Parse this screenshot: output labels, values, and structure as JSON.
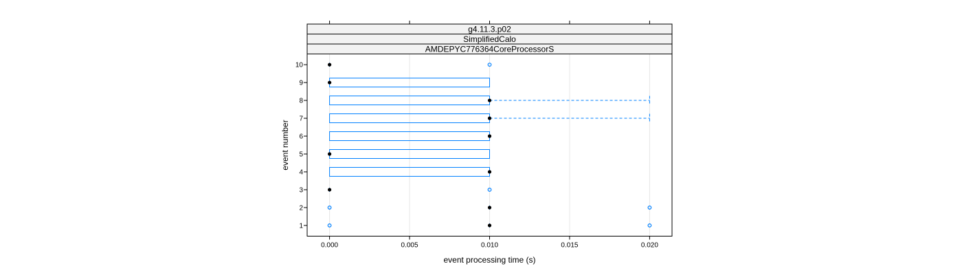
{
  "chart_data": {
    "type": "boxplot",
    "strips": [
      "g4.11.3.p02",
      "SimplifiedCalo",
      "AMDEPYC776364CoreProcessorS"
    ],
    "xlabel": "event processing time (s)",
    "ylabel": "event number",
    "xlim": [
      -0.0014,
      0.0214
    ],
    "ylim": [
      0.4,
      10.6
    ],
    "x_ticks": [
      0.0,
      0.005,
      0.01,
      0.015,
      0.02
    ],
    "x_tick_labels": [
      "0.000",
      "0.005",
      "0.010",
      "0.015",
      "0.020"
    ],
    "y_ticks": [
      1,
      2,
      3,
      4,
      5,
      6,
      7,
      8,
      9,
      10
    ],
    "y_tick_labels": [
      "1",
      "2",
      "3",
      "4",
      "5",
      "6",
      "7",
      "8",
      "9",
      "10"
    ],
    "grid": "vertical",
    "colors": {
      "box": "#0080ff",
      "median": "#000000",
      "strip_bg": "#f2f2f2",
      "grid": "#e6e6e6"
    },
    "boxes": [
      {
        "event": 1,
        "q1": 0.01,
        "median": 0.01,
        "q3": 0.01,
        "whisker_low": 0.01,
        "whisker_high": 0.01,
        "outliers": [
          0.0,
          0.02
        ]
      },
      {
        "event": 2,
        "q1": 0.01,
        "median": 0.01,
        "q3": 0.01,
        "whisker_low": 0.01,
        "whisker_high": 0.01,
        "outliers": [
          0.0,
          0.02
        ]
      },
      {
        "event": 3,
        "q1": 0.0,
        "median": 0.0,
        "q3": 0.0,
        "whisker_low": 0.0,
        "whisker_high": 0.0,
        "outliers": [
          0.01
        ]
      },
      {
        "event": 4,
        "q1": 0.0,
        "median": 0.01,
        "q3": 0.01,
        "whisker_low": 0.0,
        "whisker_high": 0.01,
        "outliers": []
      },
      {
        "event": 5,
        "q1": 0.0,
        "median": 0.0,
        "q3": 0.01,
        "whisker_low": 0.0,
        "whisker_high": 0.01,
        "outliers": []
      },
      {
        "event": 6,
        "q1": 0.0,
        "median": 0.01,
        "q3": 0.01,
        "whisker_low": 0.0,
        "whisker_high": 0.01,
        "outliers": []
      },
      {
        "event": 7,
        "q1": 0.0,
        "median": 0.01,
        "q3": 0.01,
        "whisker_low": 0.0,
        "whisker_high": 0.02,
        "outliers": []
      },
      {
        "event": 8,
        "q1": 0.0,
        "median": 0.01,
        "q3": 0.01,
        "whisker_low": 0.0,
        "whisker_high": 0.02,
        "outliers": []
      },
      {
        "event": 9,
        "q1": 0.0,
        "median": 0.0,
        "q3": 0.01,
        "whisker_low": 0.0,
        "whisker_high": 0.01,
        "outliers": []
      },
      {
        "event": 10,
        "q1": 0.0,
        "median": 0.0,
        "q3": 0.0,
        "whisker_low": 0.0,
        "whisker_high": 0.0,
        "outliers": [
          0.01
        ]
      }
    ]
  }
}
